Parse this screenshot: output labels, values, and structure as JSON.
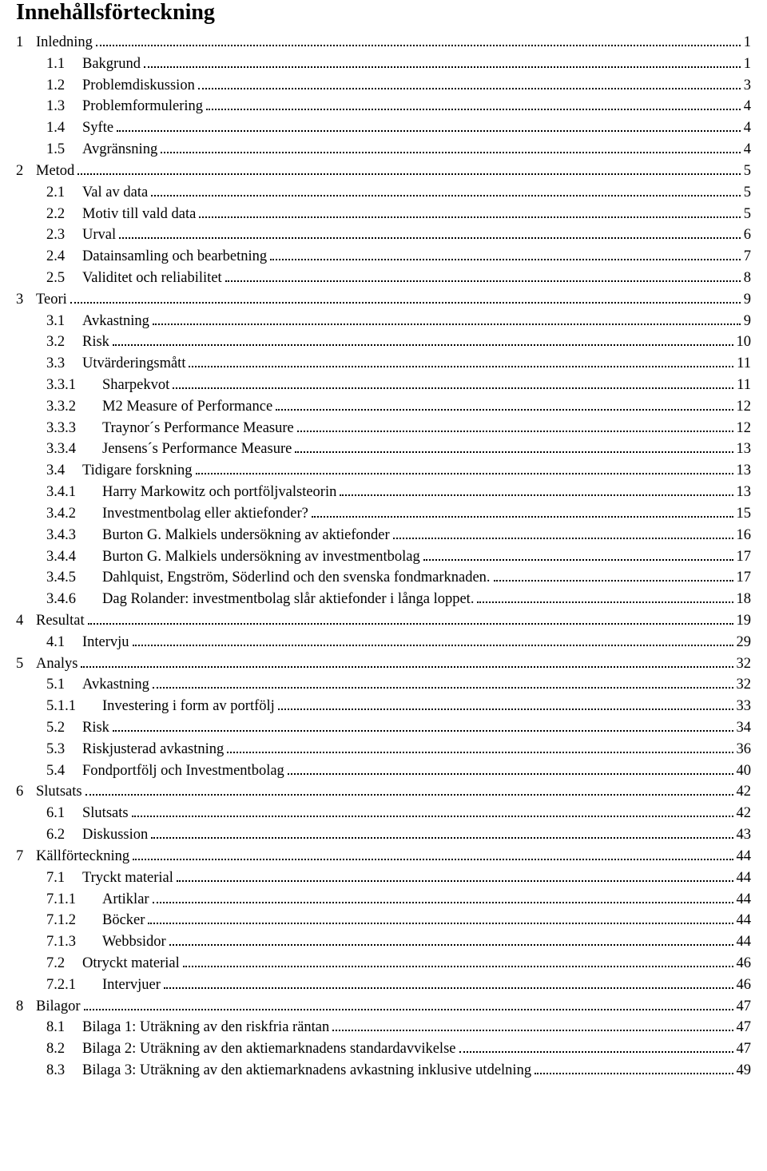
{
  "title": "Innehållsförteckning",
  "toc": [
    {
      "lvl": 1,
      "num": "1",
      "label": "Inledning",
      "page": "1"
    },
    {
      "lvl": 2,
      "num": "1.1",
      "label": "Bakgrund",
      "page": "1"
    },
    {
      "lvl": 2,
      "num": "1.2",
      "label": "Problemdiskussion",
      "page": "3"
    },
    {
      "lvl": 2,
      "num": "1.3",
      "label": "Problemformulering",
      "page": "4"
    },
    {
      "lvl": 2,
      "num": "1.4",
      "label": "Syfte",
      "page": "4"
    },
    {
      "lvl": 2,
      "num": "1.5",
      "label": "Avgränsning",
      "page": "4"
    },
    {
      "lvl": 1,
      "num": "2",
      "label": "Metod",
      "page": "5"
    },
    {
      "lvl": 2,
      "num": "2.1",
      "label": "Val av data",
      "page": "5"
    },
    {
      "lvl": 2,
      "num": "2.2",
      "label": "Motiv till vald data",
      "page": "5"
    },
    {
      "lvl": 2,
      "num": "2.3",
      "label": "Urval",
      "page": "6"
    },
    {
      "lvl": 2,
      "num": "2.4",
      "label": "Datainsamling och bearbetning",
      "page": "7"
    },
    {
      "lvl": 2,
      "num": "2.5",
      "label": "Validitet och reliabilitet",
      "page": "8"
    },
    {
      "lvl": 1,
      "num": "3",
      "label": "Teori",
      "page": "9"
    },
    {
      "lvl": 2,
      "num": "3.1",
      "label": "Avkastning",
      "page": "9"
    },
    {
      "lvl": 2,
      "num": "3.2",
      "label": "Risk",
      "page": "10"
    },
    {
      "lvl": 2,
      "num": "3.3",
      "label": "Utvärderingsmått",
      "page": "11"
    },
    {
      "lvl": 3,
      "num": "3.3.1",
      "label": "Sharpekvot",
      "page": "11"
    },
    {
      "lvl": 3,
      "num": "3.3.2",
      "label": "M2 Measure of Performance",
      "page": "12"
    },
    {
      "lvl": 3,
      "num": "3.3.3",
      "label": "Traynor´s Performance Measure",
      "page": "12"
    },
    {
      "lvl": 3,
      "num": "3.3.4",
      "label": "Jensens´s Performance Measure",
      "page": "13"
    },
    {
      "lvl": 2,
      "num": "3.4",
      "label": "Tidigare forskning",
      "page": "13"
    },
    {
      "lvl": 3,
      "num": "3.4.1",
      "label": "Harry Markowitz och portföljvalsteorin",
      "page": "13"
    },
    {
      "lvl": 3,
      "num": "3.4.2",
      "label": "Investmentbolag eller aktiefonder?",
      "page": "15"
    },
    {
      "lvl": 3,
      "num": "3.4.3",
      "label": "Burton G. Malkiels undersökning av aktiefonder",
      "page": "16"
    },
    {
      "lvl": 3,
      "num": "3.4.4",
      "label": "Burton G. Malkiels undersökning av investmentbolag",
      "page": "17"
    },
    {
      "lvl": 3,
      "num": "3.4.5",
      "label": "Dahlquist, Engström, Söderlind och den svenska fondmarknaden.",
      "page": "17"
    },
    {
      "lvl": 3,
      "num": "3.4.6",
      "label": "Dag Rolander: investmentbolag slår aktiefonder i långa loppet.",
      "page": "18"
    },
    {
      "lvl": 1,
      "num": "4",
      "label": "Resultat",
      "page": "19"
    },
    {
      "lvl": 2,
      "num": "4.1",
      "label": "Intervju",
      "page": "29"
    },
    {
      "lvl": 1,
      "num": "5",
      "label": "Analys",
      "page": "32"
    },
    {
      "lvl": 2,
      "num": "5.1",
      "label": "Avkastning",
      "page": "32"
    },
    {
      "lvl": 3,
      "num": "5.1.1",
      "label": "Investering i form av portfölj",
      "page": "33"
    },
    {
      "lvl": 2,
      "num": "5.2",
      "label": "Risk",
      "page": "34"
    },
    {
      "lvl": 2,
      "num": "5.3",
      "label": "Riskjusterad avkastning",
      "page": "36"
    },
    {
      "lvl": 2,
      "num": "5.4",
      "label": "Fondportfölj och Investmentbolag",
      "page": "40"
    },
    {
      "lvl": 1,
      "num": "6",
      "label": "Slutsats",
      "page": "42"
    },
    {
      "lvl": 2,
      "num": "6.1",
      "label": "Slutsats",
      "page": "42"
    },
    {
      "lvl": 2,
      "num": "6.2",
      "label": "Diskussion",
      "page": "43"
    },
    {
      "lvl": 1,
      "num": "7",
      "label": "Källförteckning",
      "page": "44"
    },
    {
      "lvl": 2,
      "num": "7.1",
      "label": "Tryckt material",
      "page": "44"
    },
    {
      "lvl": 3,
      "num": "7.1.1",
      "label": "Artiklar",
      "page": "44"
    },
    {
      "lvl": 3,
      "num": "7.1.2",
      "label": "Böcker",
      "page": "44"
    },
    {
      "lvl": 3,
      "num": "7.1.3",
      "label": "Webbsidor",
      "page": "44"
    },
    {
      "lvl": 2,
      "num": "7.2",
      "label": "Otryckt material",
      "page": "46"
    },
    {
      "lvl": 3,
      "num": "7.2.1",
      "label": "Intervjuer",
      "page": "46"
    },
    {
      "lvl": 1,
      "num": "8",
      "label": "Bilagor",
      "page": "47"
    },
    {
      "lvl": 2,
      "num": "8.1",
      "label": "Bilaga 1: Uträkning av den riskfria räntan",
      "page": "47"
    },
    {
      "lvl": 2,
      "num": "8.2",
      "label": "Bilaga 2: Uträkning av den aktiemarknadens standardavvikelse",
      "page": "47"
    },
    {
      "lvl": 2,
      "num": "8.3",
      "label": "Bilaga 3: Uträkning av den aktiemarknadens avkastning inklusive utdelning",
      "page": "49"
    }
  ]
}
